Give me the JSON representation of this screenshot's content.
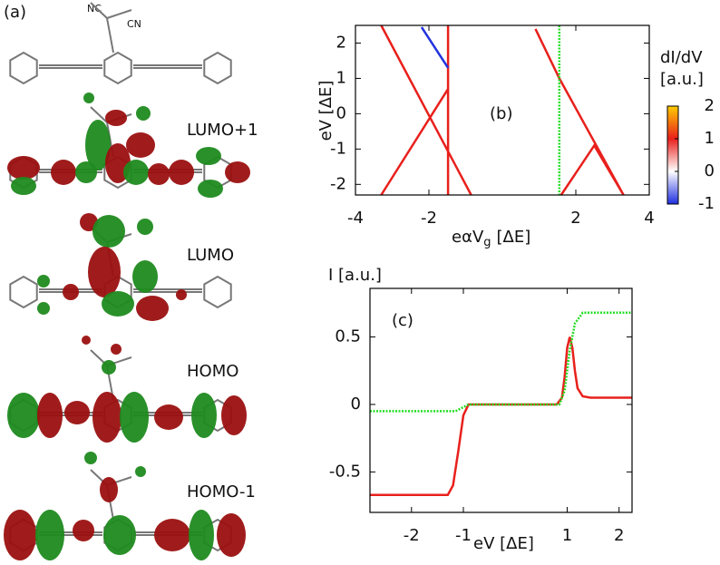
{
  "panel_a": {
    "label": "(a)",
    "molecule_labels": [
      "NC",
      "CN"
    ],
    "orbitals": [
      "LUMO+1",
      "LUMO",
      "HOMO",
      "HOMO-1"
    ]
  },
  "chart_data": [
    {
      "type": "colormap",
      "label": "(b)",
      "x_label": [
        "eαV",
        "g",
        "[ΔE]"
      ],
      "y_label": "eV [ΔE]",
      "xlim": [
        -4,
        4
      ],
      "ylim": [
        -2.3,
        2.5
      ],
      "xticks": [
        -4,
        -2,
        2,
        4
      ],
      "yticks": [
        -2,
        -1,
        0,
        1,
        2
      ],
      "series": [
        {
          "color": "#e8201c",
          "dash": false,
          "x": [
            -3.3,
            -0.85,
            null,
            -3.3,
            -1.48,
            null,
            -1.48,
            -1.48,
            null,
            0.9,
            1.55,
            3.3,
            null,
            1.6,
            2.5,
            3.3
          ],
          "values": [
            2.5,
            -2.3,
            null,
            -2.3,
            0.7,
            null,
            2.5,
            -2.3,
            null,
            2.4,
            1,
            -2.3,
            null,
            -2.3,
            -0.9,
            -2.3
          ]
        },
        {
          "color": "#2233dd",
          "dash": false,
          "x": [
            -2.2,
            -1.48
          ],
          "values": [
            2.45,
            1.3
          ]
        },
        {
          "color": "#22dd22",
          "dash": true,
          "x": [
            1.55,
            1.55
          ],
          "values": [
            2.5,
            -2.3
          ]
        }
      ],
      "colorbar": {
        "label": [
          "dI/dV",
          "[a.u.]"
        ],
        "lim": [
          -1,
          2
        ],
        "ticks": [
          -1,
          0,
          1,
          2
        ],
        "colors": [
          "#1f2fe0",
          "#ffffff",
          "#e8201c",
          "#ffcc00"
        ]
      }
    },
    {
      "type": "line",
      "label": "(c)",
      "x_label": "eV [ΔE]",
      "y_label": "I [a.u.]",
      "xlim": [
        -2.8,
        2.25
      ],
      "ylim": [
        -0.8,
        0.86
      ],
      "xticks": [
        -2,
        -1,
        1,
        2
      ],
      "yticks": [
        -0.5,
        0,
        0.5
      ],
      "series": [
        {
          "color": "#e8201c",
          "dash": false,
          "x": [
            -2.8,
            -1.3,
            -1.2,
            -1.1,
            -1.0,
            -0.9,
            0.8,
            0.9,
            0.95,
            1.0,
            1.05,
            1.1,
            1.15,
            1.2,
            1.3,
            1.45,
            2.25
          ],
          "values": [
            -0.67,
            -0.67,
            -0.6,
            -0.35,
            -0.08,
            0,
            0,
            0.05,
            0.2,
            0.42,
            0.5,
            0.42,
            0.25,
            0.12,
            0.06,
            0.05,
            0.05
          ]
        },
        {
          "color": "#22dd22",
          "dash": true,
          "x": [
            -2.8,
            -1.15,
            -1.0,
            -0.9,
            0.85,
            0.95,
            1.05,
            1.15,
            1.3,
            2.25
          ],
          "values": [
            -0.05,
            -0.05,
            -0.02,
            0,
            0,
            0.1,
            0.4,
            0.6,
            0.68,
            0.68
          ]
        }
      ]
    }
  ]
}
